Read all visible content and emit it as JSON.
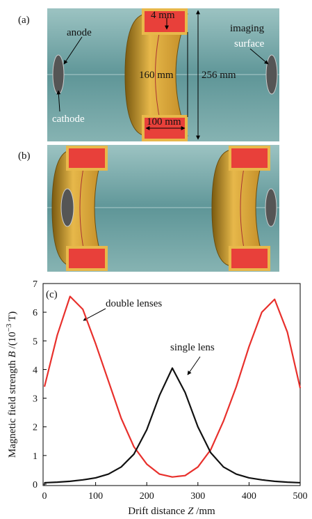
{
  "panels": {
    "a": {
      "label": "(a)",
      "anode": "anode",
      "cathode": "cathode",
      "imaging": "imaging",
      "surface": "surface",
      "dim_4": "4 mm",
      "dim_160": "160 mm",
      "dim_256": "256 mm",
      "dim_100": "100 mm"
    },
    "b": {
      "label": "(b)"
    }
  },
  "chart_data": {
    "type": "line",
    "panel_label": "(c)",
    "x_label": {
      "text": "Drift distance ",
      "var": "Z",
      "unit": " /mm"
    },
    "y_label": {
      "text": "Magnetic field strength ",
      "var": "B",
      "pre": " /(10",
      "exp": "−3",
      "post": " T)"
    },
    "x": [
      0,
      25,
      50,
      75,
      100,
      125,
      150,
      175,
      200,
      225,
      250,
      275,
      300,
      325,
      350,
      375,
      400,
      425,
      450,
      475,
      500
    ],
    "series": [
      {
        "name": "double lenses",
        "color": "#e8302c",
        "values": [
          3.4,
          5.2,
          6.55,
          6.1,
          4.9,
          3.6,
          2.3,
          1.3,
          0.7,
          0.35,
          0.25,
          0.3,
          0.6,
          1.2,
          2.2,
          3.4,
          4.8,
          6.0,
          6.45,
          5.3,
          3.35
        ]
      },
      {
        "name": "single lens",
        "color": "#111111",
        "values": [
          0.05,
          0.07,
          0.1,
          0.15,
          0.22,
          0.35,
          0.6,
          1.05,
          1.9,
          3.1,
          4.05,
          3.2,
          2.0,
          1.1,
          0.6,
          0.35,
          0.22,
          0.15,
          0.1,
          0.07,
          0.05
        ]
      }
    ],
    "xlim": [
      0,
      500
    ],
    "ylim": [
      0,
      7
    ],
    "xticks": [
      0,
      100,
      200,
      300,
      400,
      500
    ],
    "yticks": [
      0,
      1,
      2,
      3,
      4,
      5,
      6,
      7
    ]
  }
}
